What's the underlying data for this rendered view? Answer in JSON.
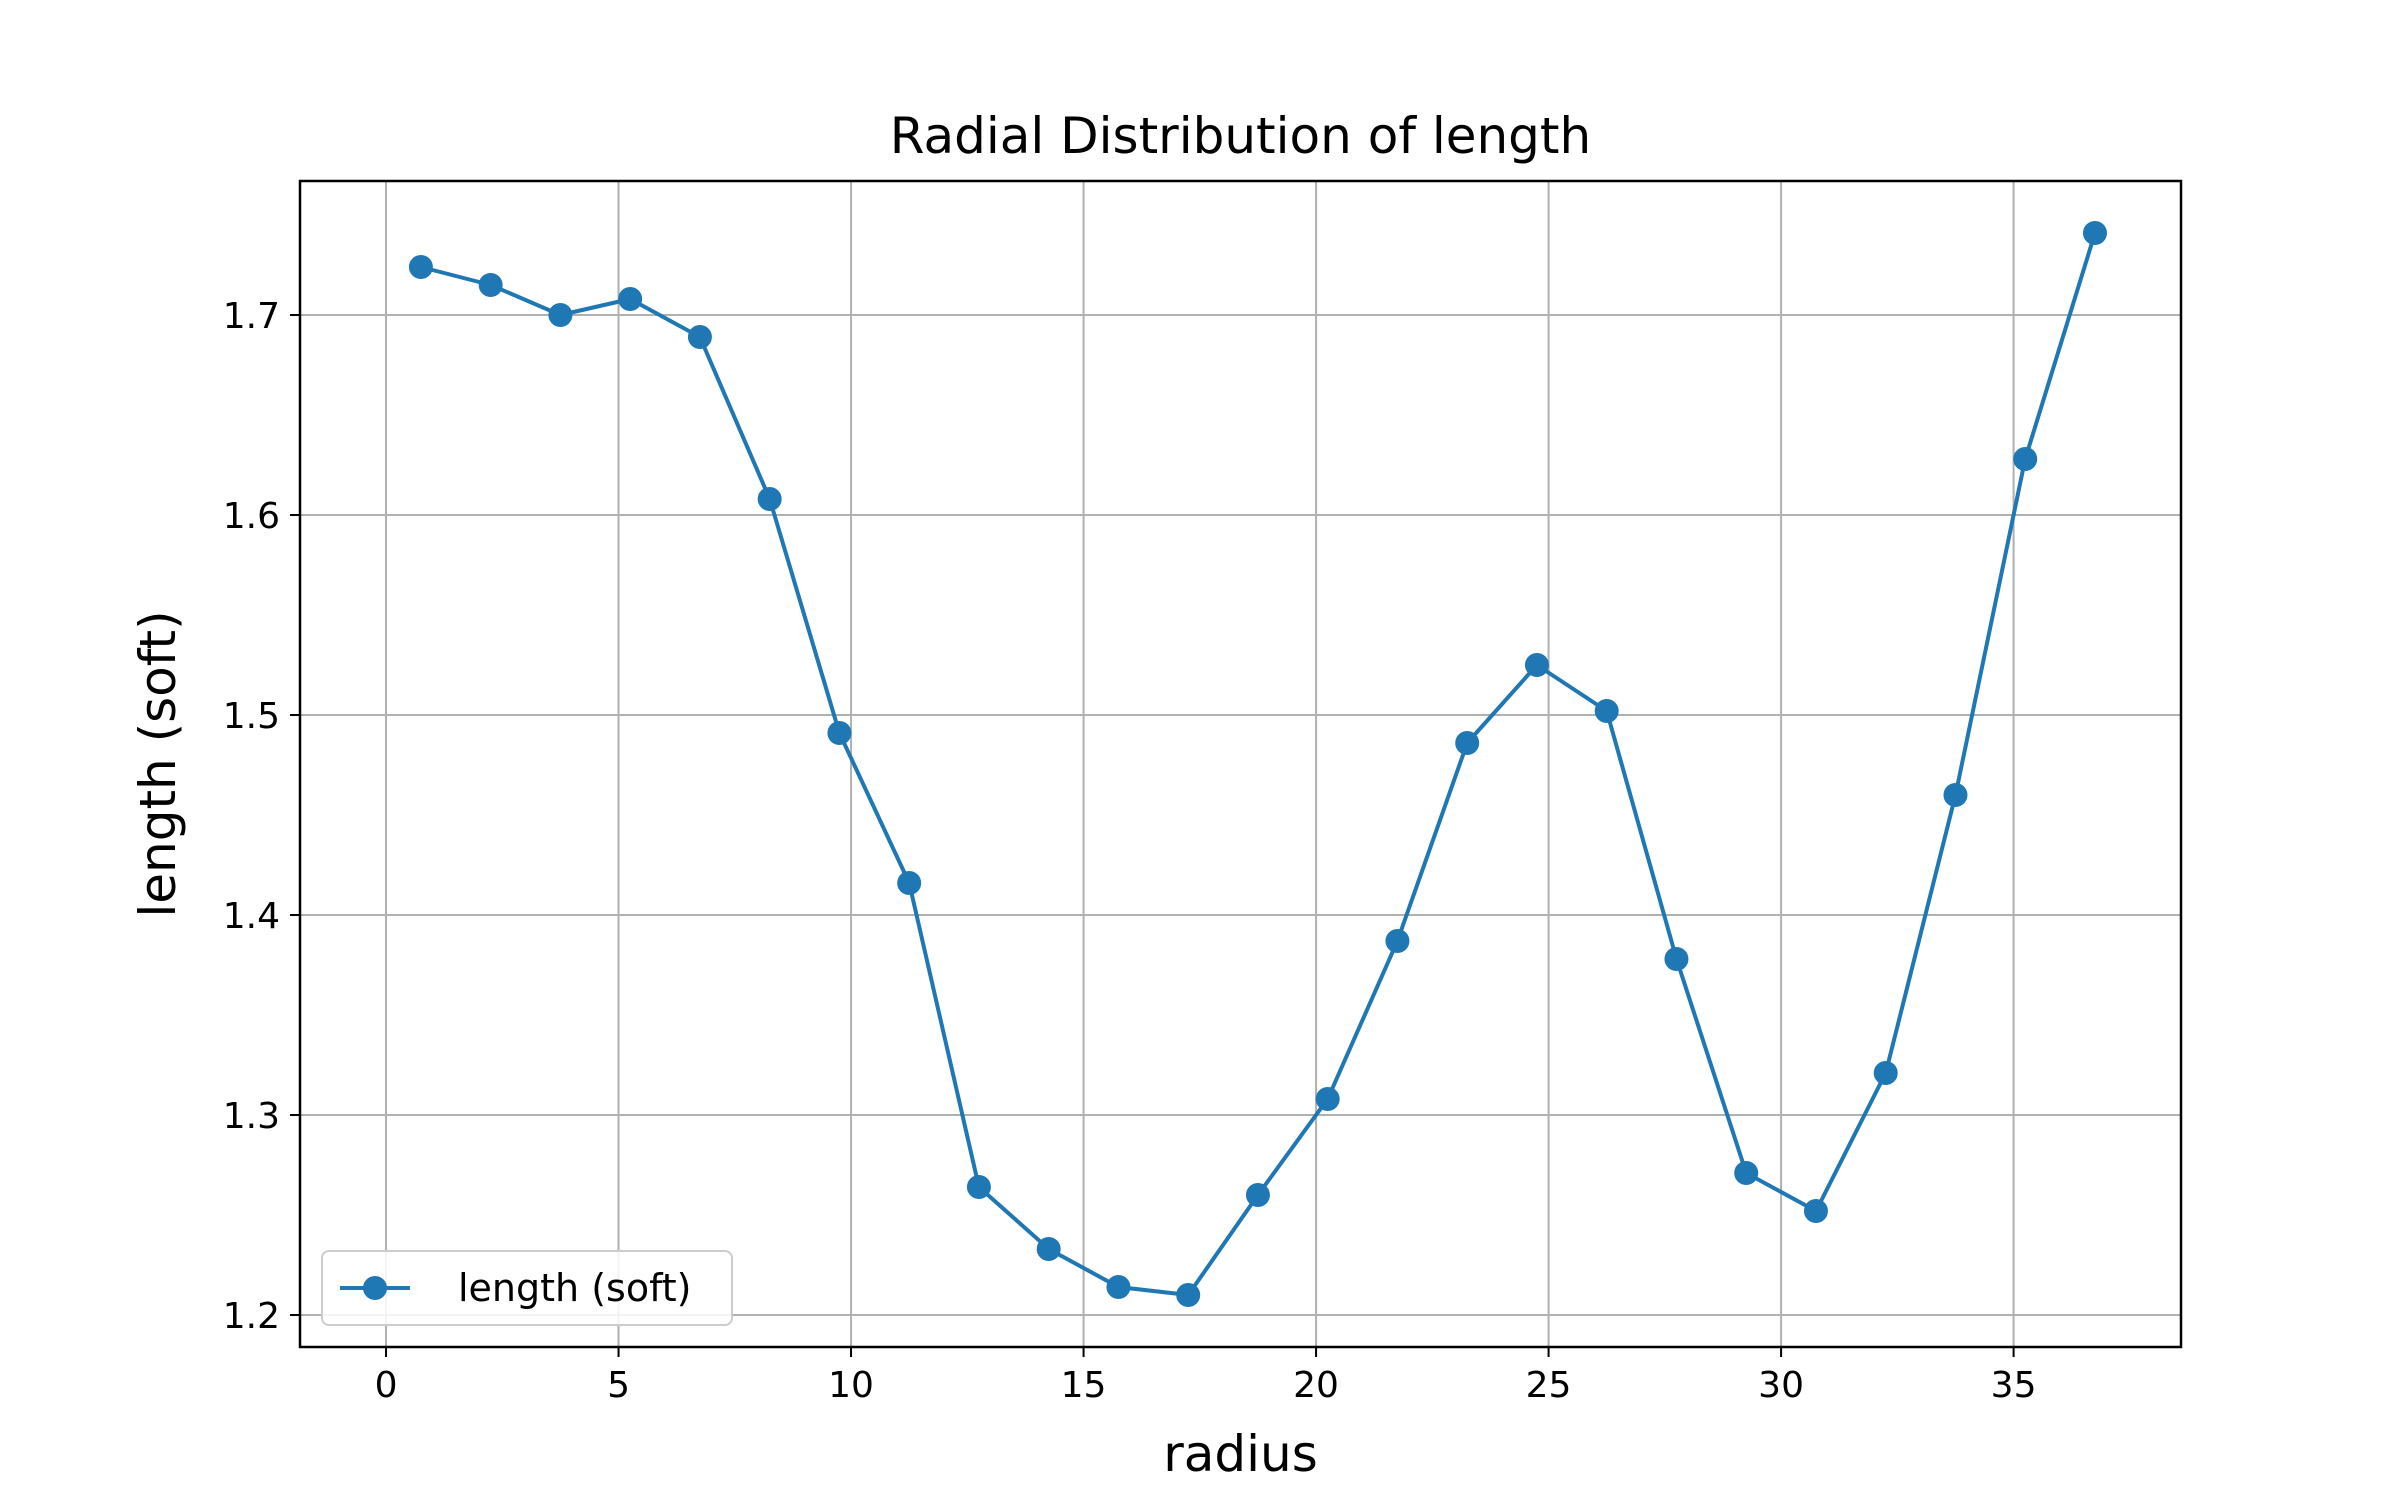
{
  "chart_data": {
    "type": "line",
    "title": "Radial Distribution of length",
    "xlabel": "radius",
    "ylabel": "length (soft)",
    "xlim": [
      -1.85,
      38.6
    ],
    "ylim": [
      1.184,
      1.767
    ],
    "xticks": [
      0,
      5,
      10,
      15,
      20,
      25,
      30,
      35
    ],
    "yticks": [
      1.2,
      1.3,
      1.4,
      1.5,
      1.6,
      1.7
    ],
    "xtick_labels": [
      "0",
      "5",
      "10",
      "15",
      "20",
      "25",
      "30",
      "35"
    ],
    "ytick_labels": [
      "1.2",
      "1.3",
      "1.4",
      "1.5",
      "1.6",
      "1.7"
    ],
    "grid": true,
    "legend_position": "lower-left",
    "series": [
      {
        "name": "length (soft)",
        "color": "#1f77b4",
        "marker": "circle",
        "x": [
          0.75,
          2.25,
          3.75,
          5.25,
          6.75,
          8.25,
          9.75,
          11.25,
          12.75,
          14.25,
          15.75,
          17.25,
          18.75,
          20.25,
          21.75,
          23.25,
          24.75,
          26.25,
          27.75,
          29.25,
          30.75,
          32.25,
          33.75,
          35.25,
          36.75
        ],
        "y": [
          1.724,
          1.715,
          1.7,
          1.708,
          1.689,
          1.608,
          1.491,
          1.416,
          1.264,
          1.233,
          1.214,
          1.21,
          1.26,
          1.308,
          1.387,
          1.486,
          1.525,
          1.502,
          1.378,
          1.271,
          1.252,
          1.321,
          1.46,
          1.628,
          1.741
        ]
      }
    ]
  }
}
